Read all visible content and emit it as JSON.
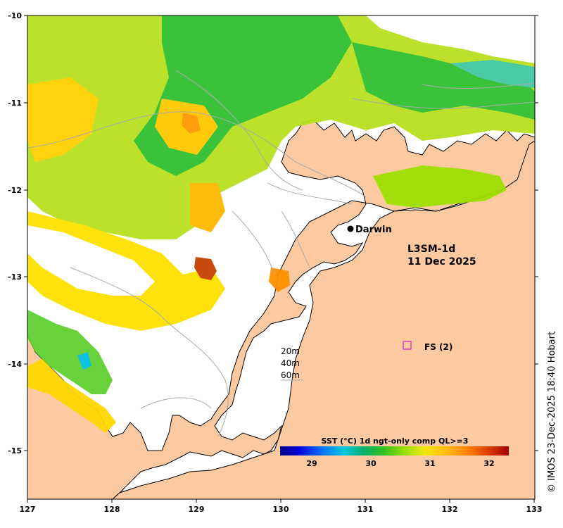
{
  "product": {
    "line1": "L3SM-1d",
    "line2": "11 Dec 2025"
  },
  "place": {
    "name": "Darwin"
  },
  "station": {
    "label": "FS (2)",
    "color": "#cc00cc"
  },
  "depth_contours": {
    "labels": [
      "20m",
      "40m",
      "60m"
    ]
  },
  "colorbar": {
    "title": "SST (°C) 1d ngt-only comp QL>=3",
    "tick_labels": [
      "29",
      "30",
      "31",
      "32"
    ],
    "colormap": [
      "#00008b",
      "#0000d0",
      "#0050ff",
      "#00a0ff",
      "#00d0e0",
      "#00c8a0",
      "#00b060",
      "#20c020",
      "#60d000",
      "#a0e000",
      "#e0e800",
      "#ffd800",
      "#ffb000",
      "#ff8800",
      "#e86000",
      "#c83000",
      "#a00000"
    ]
  },
  "axes": {
    "x_tick_labels": [
      "127",
      "128",
      "129",
      "130",
      "131",
      "132",
      "133"
    ],
    "y_tick_labels": [
      "-10",
      "-11",
      "-12",
      "-13",
      "-14",
      "-15"
    ]
  },
  "credit": {
    "text": "© IMOS 23-Dec-2025 18:40 Hobart"
  },
  "colors": {
    "land": "#fcc9a0",
    "no_data": "#ffffff",
    "contour": "#aaaaaa",
    "coast": "#000000"
  }
}
